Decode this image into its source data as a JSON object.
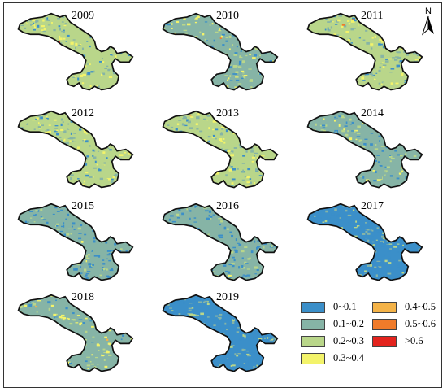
{
  "figure": {
    "years": [
      "2009",
      "2010",
      "2011",
      "2012",
      "2013",
      "2014",
      "2015",
      "2016",
      "2017",
      "2018",
      "2019"
    ],
    "north_label": "N"
  },
  "legend": {
    "items": [
      {
        "label": "0~0.1",
        "color": "#3b8fc9"
      },
      {
        "label": "0.1~0.2",
        "color": "#86b4a6"
      },
      {
        "label": "0.2~0.3",
        "color": "#b9d68a"
      },
      {
        "label": "0.3~0.4",
        "color": "#f3f36a"
      },
      {
        "label": "0.4~0.5",
        "color": "#f4b348"
      },
      {
        "label": "0.5~0.6",
        "color": "#f07b2a"
      },
      {
        "label": ">0.6",
        "color": "#e3231d"
      }
    ]
  }
}
